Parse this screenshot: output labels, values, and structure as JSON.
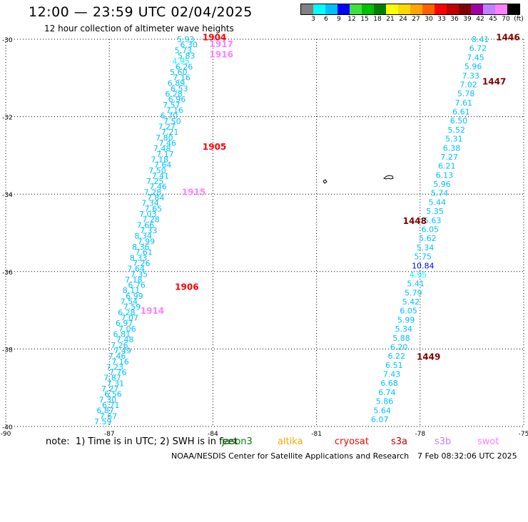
{
  "header": {
    "title": "12:00 — 23:59 UTC 02/04/2025",
    "subtitle": "12 hour collection of altimeter wave heights"
  },
  "legend": {
    "colors": [
      "#808080",
      "#00ffff",
      "#00bfff",
      "#0000ff",
      "#40e040",
      "#00c000",
      "#008000",
      "#ffff00",
      "#ffd700",
      "#ffa500",
      "#ff6000",
      "#ff0000",
      "#c00000",
      "#800000",
      "#a000a0",
      "#c080ff",
      "#ff80ff",
      "#000000"
    ],
    "labels": [
      "3",
      "6",
      "9",
      "12",
      "15",
      "18",
      "21",
      "24",
      "27",
      "30",
      "33",
      "36",
      "39",
      "42",
      "45",
      "70",
      "(ft)"
    ]
  },
  "axes": {
    "lat_labels": [
      "-30",
      "-32",
      "-34",
      "-36",
      "-38",
      "-40"
    ],
    "lon_labels": [
      "-90",
      "-87",
      "-84",
      "-81",
      "-78",
      "-75"
    ]
  },
  "times": [
    {
      "text": "1904",
      "color": "#ff0000",
      "lon": -84.3,
      "lat": -29.95
    },
    {
      "text": "1917",
      "color": "#ff80ff",
      "lon": -84.1,
      "lat": -30.13
    },
    {
      "text": "1916",
      "color": "#ff80ff",
      "lon": -84.1,
      "lat": -30.4
    },
    {
      "text": "1905",
      "color": "#ff0000",
      "lon": -84.3,
      "lat": -32.78
    },
    {
      "text": "1915",
      "color": "#ff80ff",
      "lon": -84.9,
      "lat": -33.95
    },
    {
      "text": "1906",
      "color": "#ff0000",
      "lon": -85.1,
      "lat": -36.4
    },
    {
      "text": "1914",
      "color": "#ff80ff",
      "lon": -86.1,
      "lat": -37.02
    },
    {
      "text": "1446",
      "color": "#800000",
      "lon": -75.8,
      "lat": -29.95
    },
    {
      "text": "1447",
      "color": "#800000",
      "lon": -76.2,
      "lat": -31.1
    },
    {
      "text": "1448",
      "color": "#800000",
      "lon": -78.5,
      "lat": -34.7
    },
    {
      "text": "1449",
      "color": "#800000",
      "lon": -78.1,
      "lat": -38.2
    }
  ],
  "track_left": [
    {
      "v": "5.93",
      "c": "#00bfff"
    },
    {
      "v": "6.30",
      "c": "#00bfff"
    },
    {
      "v": "5.73",
      "c": "#00bfff"
    },
    {
      "v": "5.83",
      "c": "#00bfff"
    },
    {
      "v": "4.95",
      "c": "#00ffff"
    },
    {
      "v": "6.26",
      "c": "#00bfff"
    },
    {
      "v": "5.60",
      "c": "#00bfff"
    },
    {
      "v": "7.16",
      "c": "#00bfff"
    },
    {
      "v": "6.89",
      "c": "#00bfff"
    },
    {
      "v": "6.53",
      "c": "#00bfff"
    },
    {
      "v": "6.28",
      "c": "#00bfff"
    },
    {
      "v": "6.96",
      "c": "#00bfff"
    },
    {
      "v": "7.57",
      "c": "#00bfff"
    },
    {
      "v": "7.16",
      "c": "#00bfff"
    },
    {
      "v": "6.70",
      "c": "#00bfff"
    },
    {
      "v": "7.50",
      "c": "#00bfff"
    },
    {
      "v": "7.27",
      "c": "#00bfff"
    },
    {
      "v": "7.21",
      "c": "#00bfff"
    },
    {
      "v": "7.80",
      "c": "#00bfff"
    },
    {
      "v": "7.46",
      "c": "#00bfff"
    },
    {
      "v": "7.48",
      "c": "#00bfff"
    },
    {
      "v": "7.17",
      "c": "#00bfff"
    },
    {
      "v": "7.18",
      "c": "#00bfff"
    },
    {
      "v": "7.64",
      "c": "#00bfff"
    },
    {
      "v": "7.50",
      "c": "#00bfff"
    },
    {
      "v": "7.41",
      "c": "#00bfff"
    },
    {
      "v": "7.25",
      "c": "#00bfff"
    },
    {
      "v": "7.46",
      "c": "#00bfff"
    },
    {
      "v": "7.28",
      "c": "#00bfff"
    },
    {
      "v": "7.84",
      "c": "#00bfff"
    },
    {
      "v": "7.34",
      "c": "#00bfff"
    },
    {
      "v": "7.65",
      "c": "#00bfff"
    },
    {
      "v": "7.03",
      "c": "#00bfff"
    },
    {
      "v": "7.28",
      "c": "#00bfff"
    },
    {
      "v": "7.66",
      "c": "#00bfff"
    },
    {
      "v": "7.33",
      "c": "#00bfff"
    },
    {
      "v": "8.34",
      "c": "#00bfff"
    },
    {
      "v": "7.99",
      "c": "#00bfff"
    },
    {
      "v": "8.36",
      "c": "#00bfff"
    },
    {
      "v": "7.61",
      "c": "#00bfff"
    },
    {
      "v": "8.33",
      "c": "#00bfff"
    },
    {
      "v": "7.26",
      "c": "#00bfff"
    },
    {
      "v": "7.64",
      "c": "#00bfff"
    },
    {
      "v": "7.35",
      "c": "#00bfff"
    },
    {
      "v": "7.18",
      "c": "#00bfff"
    },
    {
      "v": "6.76",
      "c": "#00bfff"
    },
    {
      "v": "8.11",
      "c": "#00bfff"
    },
    {
      "v": "6.99",
      "c": "#00bfff"
    },
    {
      "v": "7.54",
      "c": "#00bfff"
    },
    {
      "v": "7.59",
      "c": "#00bfff"
    },
    {
      "v": "6.28",
      "c": "#00bfff"
    },
    {
      "v": "7.07",
      "c": "#00bfff"
    },
    {
      "v": "6.97",
      "c": "#00bfff"
    },
    {
      "v": "7.06",
      "c": "#00bfff"
    },
    {
      "v": "6.81",
      "c": "#00bfff"
    },
    {
      "v": "7.48",
      "c": "#00bfff"
    },
    {
      "v": "7.26",
      "c": "#00bfff"
    },
    {
      "v": "7.49",
      "c": "#00bfff"
    },
    {
      "v": "7.46",
      "c": "#00bfff"
    },
    {
      "v": "7.16",
      "c": "#00bfff"
    },
    {
      "v": "7.23",
      "c": "#00bfff"
    },
    {
      "v": "7.76",
      "c": "#00bfff"
    },
    {
      "v": "7.87",
      "c": "#00bfff"
    },
    {
      "v": "7.31",
      "c": "#00bfff"
    },
    {
      "v": "7.27",
      "c": "#00bfff"
    },
    {
      "v": "6.56",
      "c": "#00bfff"
    },
    {
      "v": "7.30",
      "c": "#00bfff"
    },
    {
      "v": "6.71",
      "c": "#00bfff"
    },
    {
      "v": "6.87",
      "c": "#00bfff"
    },
    {
      "v": "7.67",
      "c": "#00bfff"
    },
    {
      "v": "7.59",
      "c": "#00bfff"
    }
  ],
  "track_right": [
    {
      "v": "8.41",
      "c": "#00bfff"
    },
    {
      "v": "6.72",
      "c": "#00bfff"
    },
    {
      "v": "7.45",
      "c": "#00bfff"
    },
    {
      "v": "5.96",
      "c": "#00bfff"
    },
    {
      "v": "7.33",
      "c": "#00bfff"
    },
    {
      "v": "7.02",
      "c": "#00bfff"
    },
    {
      "v": "5.78",
      "c": "#00bfff"
    },
    {
      "v": "7.61",
      "c": "#00bfff"
    },
    {
      "v": "6.61",
      "c": "#00bfff"
    },
    {
      "v": "6.50",
      "c": "#00bfff"
    },
    {
      "v": "5.52",
      "c": "#00bfff"
    },
    {
      "v": "5.31",
      "c": "#00bfff"
    },
    {
      "v": "6.38",
      "c": "#00bfff"
    },
    {
      "v": "7.27",
      "c": "#00bfff"
    },
    {
      "v": "6.21",
      "c": "#00bfff"
    },
    {
      "v": "6.13",
      "c": "#00bfff"
    },
    {
      "v": "5.96",
      "c": "#00bfff"
    },
    {
      "v": "5.74",
      "c": "#00bfff"
    },
    {
      "v": "5.44",
      "c": "#00bfff"
    },
    {
      "v": "5.35",
      "c": "#00bfff"
    },
    {
      "v": "5.63",
      "c": "#00bfff"
    },
    {
      "v": "6.05",
      "c": "#00bfff"
    },
    {
      "v": "5.62",
      "c": "#00bfff"
    },
    {
      "v": "5.34",
      "c": "#00bfff"
    },
    {
      "v": "5.75",
      "c": "#00bfff"
    },
    {
      "v": "10.84",
      "c": "#0000ff"
    },
    {
      "v": "4.95",
      "c": "#00ffff"
    },
    {
      "v": "5.41",
      "c": "#00bfff"
    },
    {
      "v": "5.79",
      "c": "#00bfff"
    },
    {
      "v": "5.42",
      "c": "#00bfff"
    },
    {
      "v": "6.05",
      "c": "#00bfff"
    },
    {
      "v": "5.99",
      "c": "#00bfff"
    },
    {
      "v": "5.34",
      "c": "#00bfff"
    },
    {
      "v": "5.88",
      "c": "#00bfff"
    },
    {
      "v": "6.20",
      "c": "#00bfff"
    },
    {
      "v": "6.22",
      "c": "#00bfff"
    },
    {
      "v": "6.51",
      "c": "#00bfff"
    },
    {
      "v": "7.43",
      "c": "#00bfff"
    },
    {
      "v": "6.68",
      "c": "#00bfff"
    },
    {
      "v": "6.74",
      "c": "#00bfff"
    },
    {
      "v": "5.86",
      "c": "#00bfff"
    },
    {
      "v": "5.64",
      "c": "#00bfff"
    },
    {
      "v": "6.07",
      "c": "#00bfff"
    }
  ],
  "note": {
    "prefix": "note:  1) Time is in UTC; 2) SWH is in feet",
    "satellites": [
      {
        "name": "jason3",
        "color": "#008000"
      },
      {
        "name": "altika",
        "color": "#ffa500"
      },
      {
        "name": "cryosat",
        "color": "#ff0000"
      },
      {
        "name": "s3a",
        "color": "#c00000"
      },
      {
        "name": "s3b",
        "color": "#c080ff"
      },
      {
        "name": "swot",
        "color": "#ff80ff"
      }
    ]
  },
  "footer": {
    "credit": "NOAA/NESDIS Center for Satellite Applications and Research",
    "timestamp": "7 Feb 08:32:06 UTC 2025"
  }
}
